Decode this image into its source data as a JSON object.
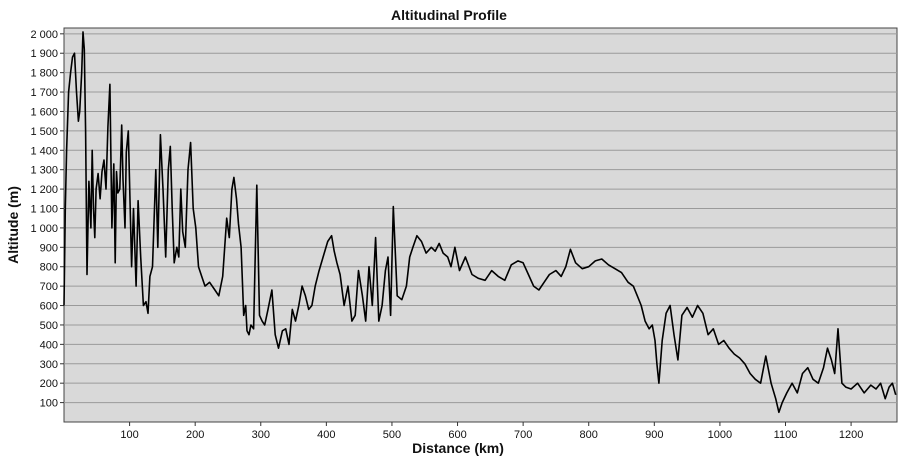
{
  "chart_data": {
    "type": "line",
    "title": "Altitudinal Profile",
    "xlabel": "Distance (km)",
    "ylabel": "Altitude (m)",
    "xlim": [
      0,
      1270
    ],
    "ylim": [
      0,
      2030
    ],
    "x_ticks": [
      100,
      200,
      300,
      400,
      500,
      600,
      700,
      800,
      900,
      1000,
      1100,
      1200
    ],
    "x_tick_labels": [
      "100",
      "200",
      "300",
      "400",
      "500",
      "600",
      "700",
      "800",
      "900",
      "1000",
      "1100",
      "1200"
    ],
    "y_ticks": [
      100,
      200,
      300,
      400,
      500,
      600,
      700,
      800,
      900,
      1000,
      1100,
      1200,
      1300,
      1400,
      1500,
      1600,
      1700,
      1800,
      1900,
      2000
    ],
    "y_tick_labels": [
      "100",
      "200",
      "300",
      "400",
      "500",
      "600",
      "700",
      "800",
      "900",
      "1 000",
      "1 100",
      "1 200",
      "1 300",
      "1 400",
      "1 500",
      "1 600",
      "1 700",
      "1 800",
      "1 900",
      "2 000"
    ],
    "grid": "horizontal",
    "legend": "none",
    "background_color": "#d9d9d9",
    "grid_color": "#9a9a9a",
    "line_color": "#000000",
    "series": [
      {
        "x": [
          0,
          2,
          4,
          7,
          10,
          13,
          16,
          19,
          22,
          24,
          27,
          29,
          31,
          33,
          35,
          38,
          41,
          43,
          45,
          47,
          49,
          52,
          55,
          58,
          61,
          64,
          67,
          70,
          73,
          76,
          78,
          80,
          82,
          85,
          88,
          90,
          93,
          95,
          98,
          101,
          103,
          106,
          110,
          113,
          117,
          121,
          125,
          128,
          131,
          135,
          140,
          143,
          147,
          151,
          155,
          159,
          162,
          165,
          168,
          172,
          175,
          178,
          181,
          185,
          189,
          193,
          197,
          201,
          205,
          210,
          215,
          222,
          230,
          236,
          242,
          248,
          252,
          256,
          259,
          263,
          266,
          270,
          274,
          277,
          279,
          282,
          285,
          289,
          294,
          298,
          302,
          306,
          311,
          317,
          322,
          327,
          333,
          338,
          343,
          348,
          353,
          358,
          363,
          368,
          373,
          378,
          383,
          389,
          395,
          402,
          408,
          412,
          416,
          421,
          427,
          433,
          439,
          444,
          449,
          455,
          460,
          465,
          470,
          475,
          480,
          485,
          490,
          494,
          498,
          502,
          508,
          515,
          522,
          527,
          532,
          538,
          545,
          552,
          560,
          566,
          572,
          578,
          585,
          590,
          596,
          603,
          612,
          622,
          632,
          642,
          652,
          662,
          672,
          682,
          692,
          700,
          708,
          716,
          724,
          732,
          740,
          750,
          758,
          765,
          772,
          780,
          790,
          800,
          810,
          820,
          830,
          840,
          850,
          860,
          868,
          874,
          880,
          886,
          892,
          897,
          901,
          904,
          907,
          912,
          918,
          924,
          930,
          936,
          942,
          950,
          958,
          966,
          974,
          982,
          990,
          998,
          1006,
          1014,
          1022,
          1030,
          1038,
          1046,
          1054,
          1062,
          1070,
          1078,
          1085,
          1090,
          1095,
          1102,
          1110,
          1118,
          1126,
          1134,
          1142,
          1150,
          1158,
          1164,
          1170,
          1175,
          1180,
          1186,
          1192,
          1200,
          1210,
          1220,
          1230,
          1238,
          1245,
          1252,
          1258,
          1263,
          1268
        ],
        "y": [
          600,
          1100,
          1400,
          1700,
          1800,
          1880,
          1900,
          1700,
          1550,
          1600,
          1800,
          2010,
          1920,
          1500,
          760,
          1240,
          1000,
          1400,
          1100,
          950,
          1200,
          1280,
          1150,
          1290,
          1350,
          1200,
          1520,
          1740,
          1000,
          1330,
          820,
          1290,
          1180,
          1200,
          1530,
          1250,
          1000,
          1390,
          1500,
          1100,
          800,
          1100,
          700,
          1140,
          850,
          600,
          620,
          560,
          750,
          800,
          1300,
          900,
          1480,
          1200,
          850,
          1300,
          1420,
          1100,
          820,
          900,
          850,
          1200,
          980,
          900,
          1300,
          1440,
          1100,
          1000,
          800,
          750,
          700,
          720,
          680,
          650,
          750,
          1050,
          950,
          1200,
          1260,
          1150,
          1020,
          900,
          550,
          600,
          470,
          450,
          500,
          480,
          1220,
          550,
          520,
          500,
          580,
          680,
          450,
          380,
          470,
          480,
          400,
          580,
          520,
          600,
          700,
          650,
          580,
          600,
          700,
          780,
          850,
          930,
          960,
          880,
          820,
          760,
          600,
          700,
          520,
          550,
          780,
          650,
          520,
          800,
          600,
          950,
          520,
          600,
          780,
          850,
          550,
          1110,
          650,
          630,
          700,
          850,
          900,
          960,
          930,
          870,
          900,
          880,
          920,
          870,
          850,
          800,
          900,
          780,
          850,
          760,
          740,
          730,
          780,
          750,
          730,
          810,
          830,
          820,
          760,
          700,
          680,
          720,
          760,
          780,
          750,
          800,
          890,
          820,
          790,
          800,
          830,
          840,
          810,
          790,
          770,
          720,
          700,
          650,
          600,
          520,
          480,
          500,
          420,
          300,
          200,
          420,
          560,
          600,
          450,
          320,
          550,
          590,
          540,
          600,
          560,
          450,
          480,
          400,
          420,
          380,
          350,
          330,
          300,
          250,
          220,
          200,
          340,
          200,
          120,
          50,
          100,
          150,
          200,
          150,
          250,
          280,
          220,
          200,
          280,
          380,
          320,
          250,
          480,
          200,
          180,
          170,
          200,
          150,
          190,
          170,
          200,
          120,
          180,
          200,
          140
        ]
      }
    ]
  }
}
